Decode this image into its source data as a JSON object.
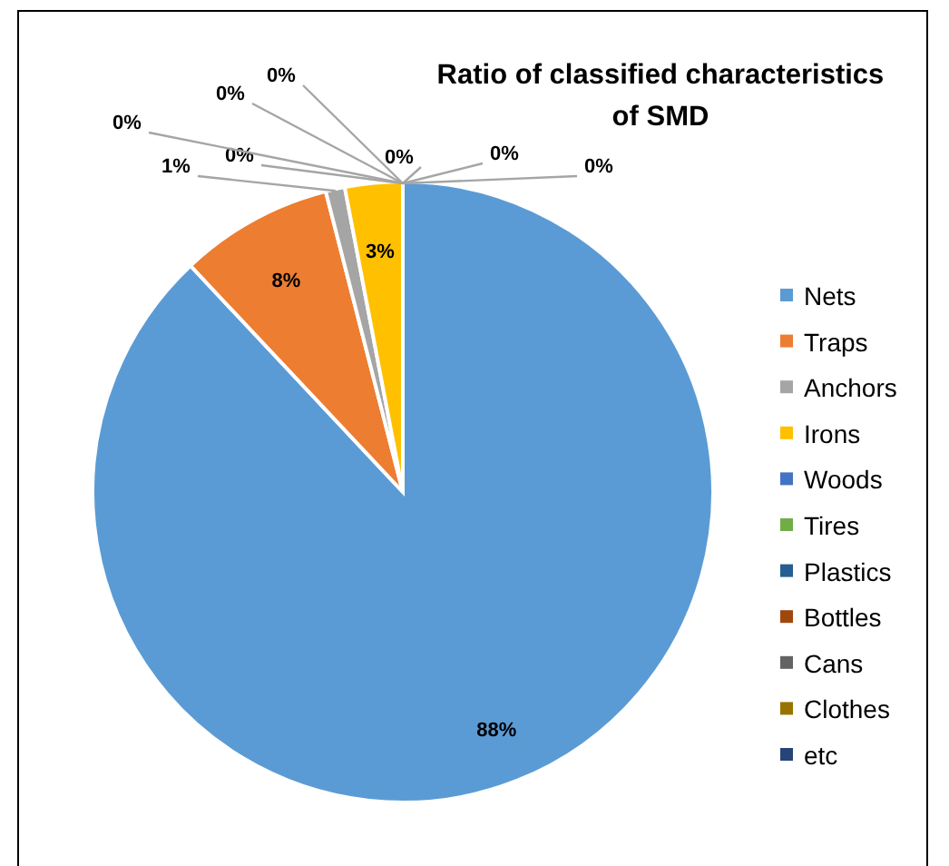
{
  "chart_data": {
    "type": "pie",
    "title": "Ratio of classified characteristics of SMD",
    "categories": [
      "Nets",
      "Traps",
      "Anchors",
      "Irons",
      "Woods",
      "Tires",
      "Plastics",
      "Bottles",
      "Cans",
      "Clothes",
      "etc"
    ],
    "values": [
      88,
      8,
      1,
      3,
      0,
      0,
      0,
      0,
      0,
      0,
      0
    ],
    "colors": [
      "#5b9bd5",
      "#ed7d31",
      "#a5a5a5",
      "#ffc000",
      "#4472c4",
      "#70ad47",
      "#255e91",
      "#9e480e",
      "#636363",
      "#997300",
      "#264478"
    ],
    "value_labels": [
      "88%",
      "8%",
      "1%",
      "3%",
      "0%",
      "0%",
      "0%",
      "0%",
      "0%",
      "0%",
      "0%"
    ],
    "legend": "right"
  }
}
